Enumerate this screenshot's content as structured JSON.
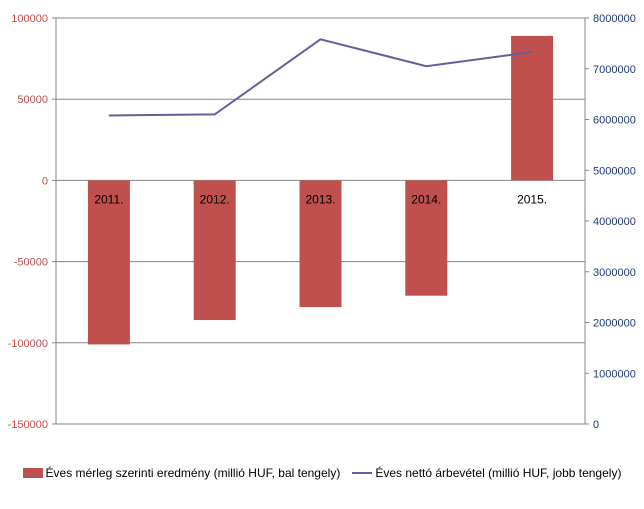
{
  "chart_data": {
    "type": "bar",
    "categories": [
      "2011.",
      "2012.",
      "2013.",
      "2014.",
      "2015."
    ],
    "series": [
      {
        "name": "Éves mérleg szerinti eredmény (millió HUF, bal tengely)",
        "type": "bar",
        "axis": "left",
        "values": [
          -101000,
          -86000,
          -78000,
          -71000,
          89000
        ]
      },
      {
        "name": "Éves nettó árbevétel (millió HUF, jobb tengely)",
        "type": "line",
        "axis": "right",
        "values": [
          6080000,
          6100000,
          7580000,
          7050000,
          7330000
        ]
      }
    ],
    "y_left": {
      "ylim": [
        -150000,
        100000
      ],
      "ticks": [
        100000,
        50000,
        0,
        -50000,
        -100000,
        -150000
      ],
      "tick_labels": [
        "100000",
        "50000",
        "0",
        "-50000",
        "-100000",
        "-150000"
      ]
    },
    "y_right": {
      "ylim": [
        0,
        8000000
      ],
      "ticks": [
        8000000,
        7000000,
        6000000,
        5000000,
        4000000,
        3000000,
        2000000,
        1000000,
        0
      ],
      "tick_labels": [
        "8000000",
        "7000000",
        "6000000",
        "5000000",
        "4000000",
        "3000000",
        "2000000",
        "1000000",
        "0"
      ]
    },
    "grid": true,
    "legend_position": "bottom",
    "colors": {
      "bar": "#c0504d",
      "line": "#6b5b9e",
      "left_axis_text": "#c0504d",
      "right_axis_text": "#1f3a7a",
      "grid": "#878787"
    }
  }
}
